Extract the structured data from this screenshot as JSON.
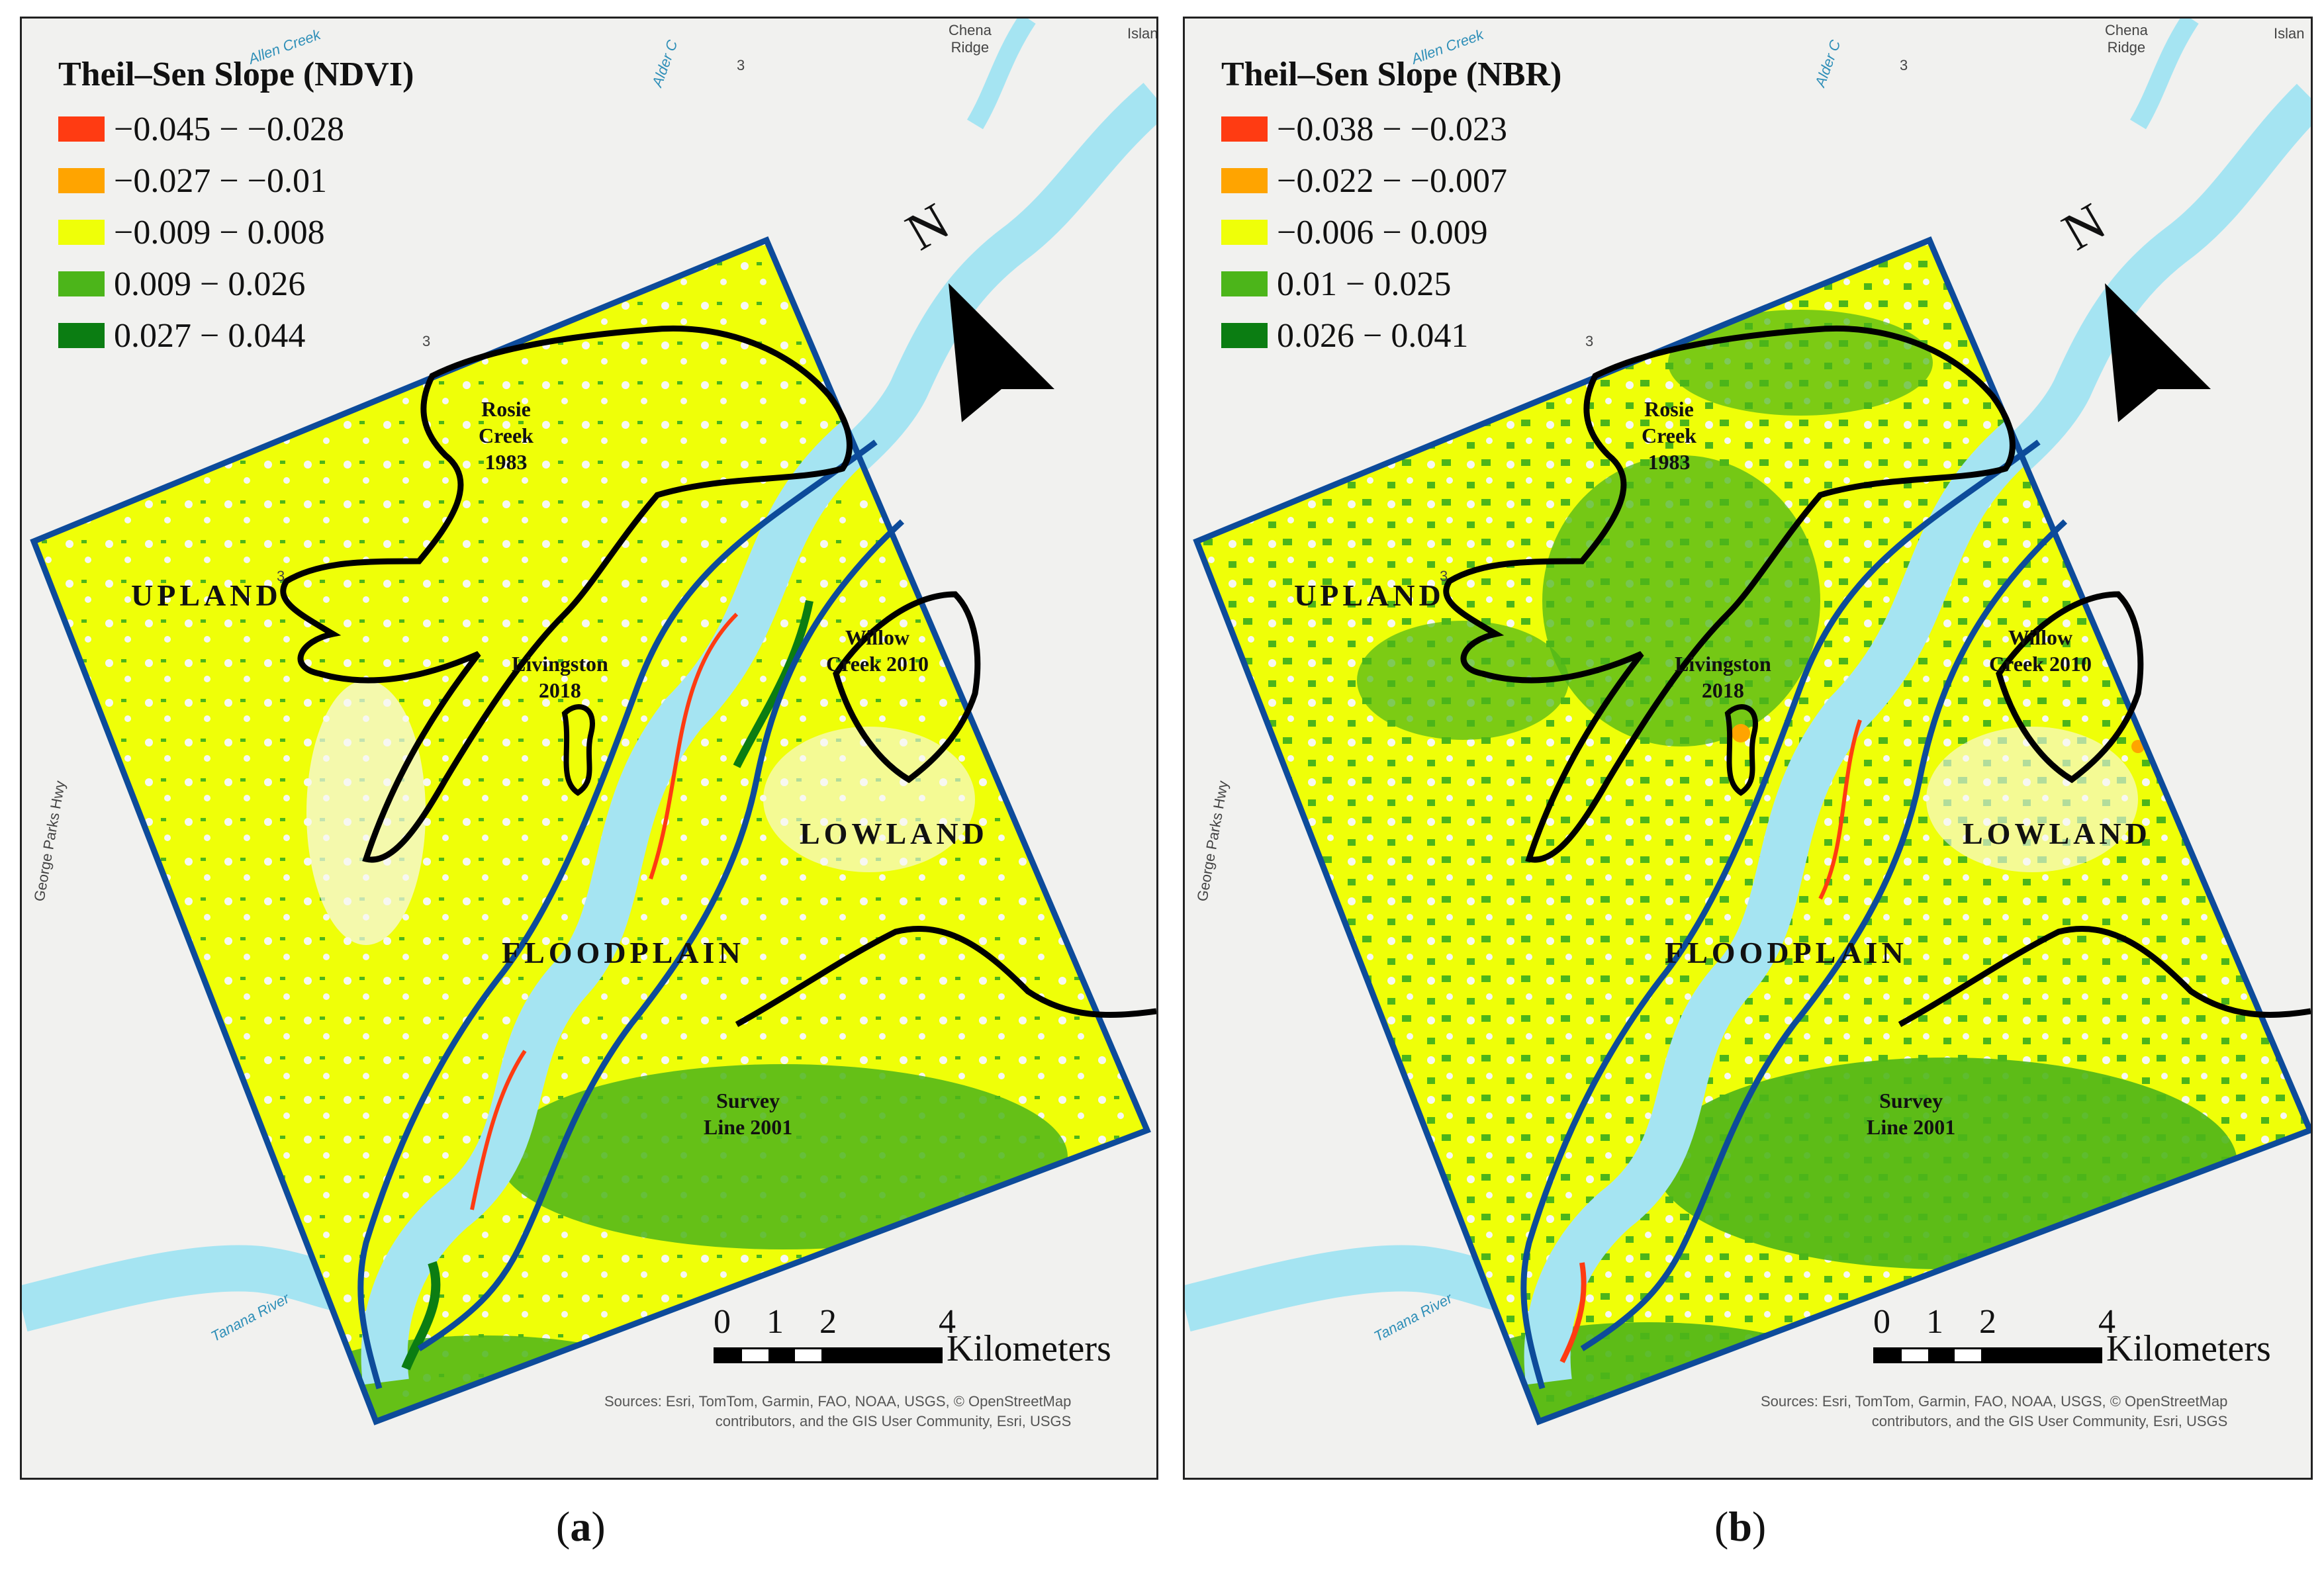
{
  "colors": {
    "class1": "#ff3b12",
    "class2": "#ffa400",
    "class3": "#efff08",
    "class4": "#4cb51a",
    "class5": "#0b7d12",
    "river": "#a5e4f2",
    "basemap": "#f1f1ef",
    "frame": "#0d4b9a",
    "boundary": "#000000"
  },
  "panels": [
    {
      "legend_title": "Theil–Sen Slope (NDVI)",
      "classes": [
        "−0.045 − −0.028",
        "−0.027 − −0.01",
        "−0.009 − 0.008",
        "0.009 − 0.026",
        "0.027 − 0.044"
      ],
      "caption_letter": "a",
      "north": "N",
      "regions": {
        "upland": "UPLAND",
        "lowland": "LOWLAND",
        "floodplain": "FLOODPLAIN"
      },
      "fires": {
        "rosie": "Rosie\nCreek\n1983",
        "livingston": "Livingston\n2018",
        "willow": "Willow\nCreek 2010",
        "survey": "Survey\nLine 2001"
      },
      "scale": {
        "ticks": [
          "0",
          "1",
          "2",
          "4"
        ],
        "unit": "Kilometers"
      },
      "sources": "Sources: Esri, TomTom, Garmin, FAO, NOAA, USGS, © OpenStreetMap\ncontributors, and the GIS User Community, Esri, USGS",
      "places": {
        "allen": "Allen Creek",
        "alder": "Alder C",
        "chena": "Chena\nRidge",
        "island": "Islan",
        "hwy3a": "3",
        "hwy3b": "3",
        "hwy3c": "3",
        "george": "George Parks Hwy",
        "tanana": "Tanana River"
      }
    },
    {
      "legend_title": "Theil–Sen Slope (NBR)",
      "classes": [
        "−0.038 − −0.023",
        "−0.022 − −0.007",
        "−0.006 − 0.009",
        "0.01 − 0.025",
        "0.026 − 0.041"
      ],
      "caption_letter": "b",
      "north": "N",
      "regions": {
        "upland": "UPLAND",
        "lowland": "LOWLAND",
        "floodplain": "FLOODPLAIN"
      },
      "fires": {
        "rosie": "Rosie\nCreek\n1983",
        "livingston": "Livingston\n2018",
        "willow": "Willow\nCreek 2010",
        "survey": "Survey\nLine 2001"
      },
      "scale": {
        "ticks": [
          "0",
          "1",
          "2",
          "4"
        ],
        "unit": "Kilometers"
      },
      "sources": "Sources: Esri, TomTom, Garmin, FAO, NOAA, USGS, © OpenStreetMap\ncontributors, and the GIS User Community, Esri, USGS",
      "places": {
        "allen": "Allen Creek",
        "alder": "Alder C",
        "chena": "Chena\nRidge",
        "island": "Islan",
        "hwy3a": "3",
        "hwy3b": "3",
        "hwy3c": "3",
        "george": "George Parks Hwy",
        "tanana": "Tanana River"
      }
    }
  ]
}
